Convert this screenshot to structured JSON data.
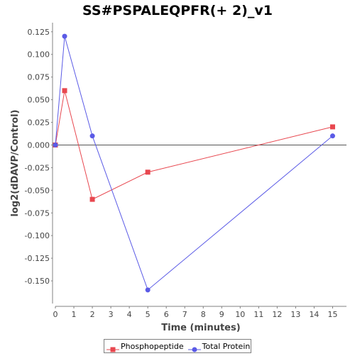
{
  "chart_data": {
    "type": "line",
    "title": "SS#PSPALEQPFR(+ 2)_v1",
    "xlabel": "Time (minutes)",
    "ylabel": "log2(dDAVP/Control)",
    "xlim": [
      0,
      15.75
    ],
    "ylim": [
      -0.175,
      0.135
    ],
    "x_ticks": [
      0,
      1,
      2,
      3,
      4,
      5,
      6,
      7,
      8,
      9,
      10,
      11,
      12,
      13,
      14,
      15
    ],
    "y_ticks": [
      -0.15,
      -0.125,
      -0.1,
      -0.075,
      -0.05,
      -0.025,
      0.0,
      0.025,
      0.05,
      0.075,
      0.1,
      0.125
    ],
    "y_tick_labels": [
      "-0.150",
      "-0.125",
      "-0.100",
      "-0.075",
      "-0.050",
      "-0.025",
      "0.000",
      "0.025",
      "0.050",
      "0.075",
      "0.100",
      "0.125"
    ],
    "grid": false,
    "legend_position": "bottom",
    "series": [
      {
        "name": "Phosphopeptide",
        "color": "#e8474f",
        "marker": "square",
        "x": [
          0,
          0.5,
          2,
          5,
          15
        ],
        "y": [
          0.0,
          0.06,
          -0.06,
          -0.03,
          0.02
        ]
      },
      {
        "name": "Total Protein",
        "color": "#5a5ae6",
        "marker": "circle",
        "x": [
          0,
          0.5,
          2,
          5,
          15
        ],
        "y": [
          0.0,
          0.12,
          0.01,
          -0.16,
          0.01
        ]
      }
    ]
  }
}
